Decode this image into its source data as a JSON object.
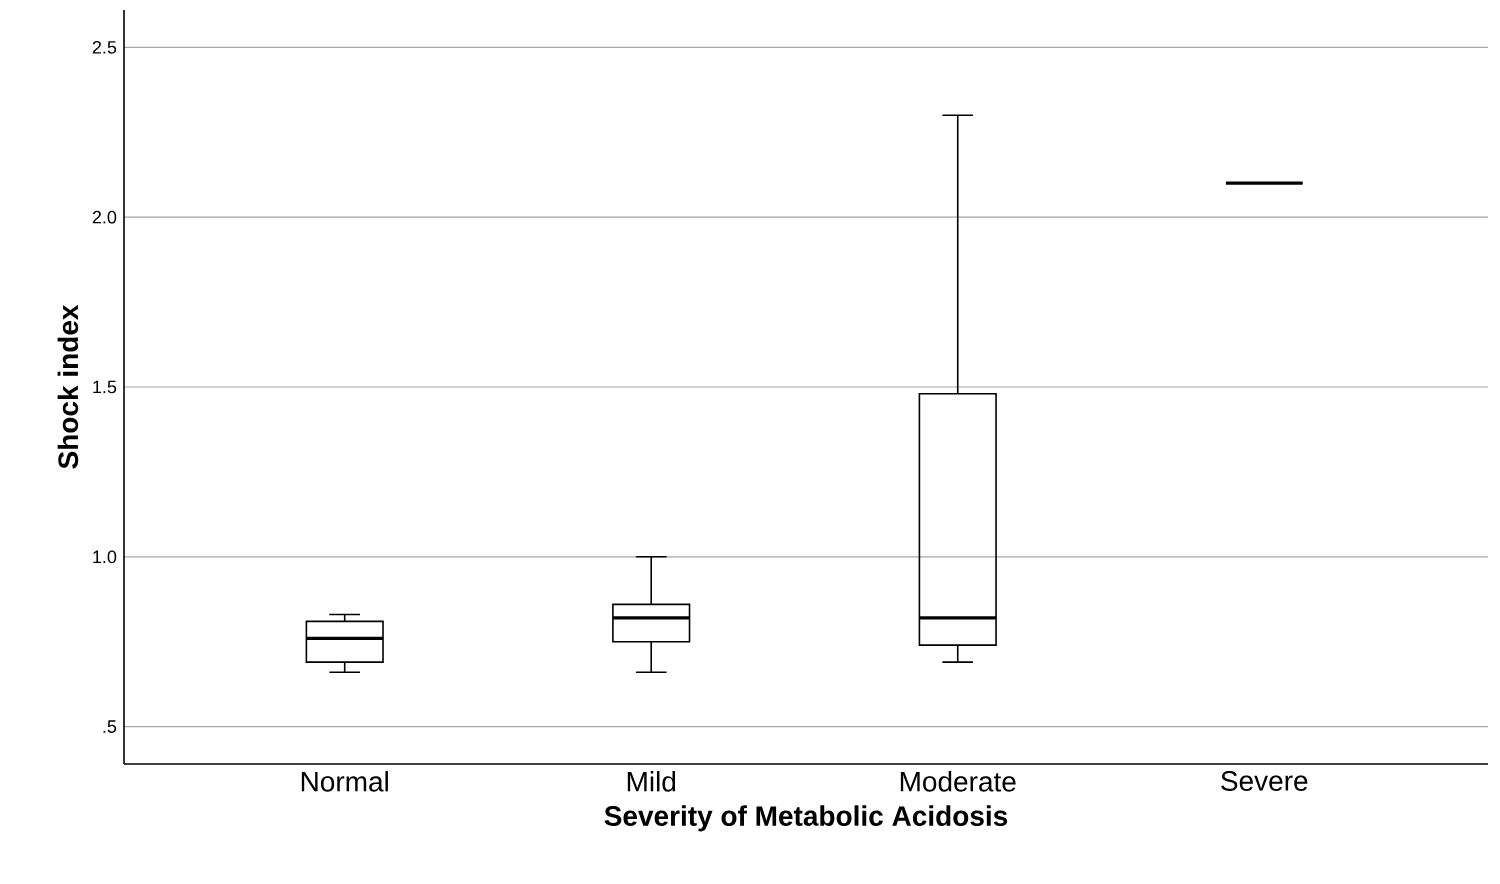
{
  "chart_data": {
    "type": "box",
    "xlabel": "Severity of Metabolic Acidosis",
    "ylabel": "Shock index",
    "categories": [
      "Normal",
      "Mild",
      "Moderate",
      "Severe"
    ],
    "boxes": [
      {
        "low": 0.66,
        "q1": 0.69,
        "median": 0.76,
        "q3": 0.81,
        "high": 0.83
      },
      {
        "low": 0.66,
        "q1": 0.75,
        "median": 0.82,
        "q3": 0.86,
        "high": 1.0
      },
      {
        "low": 0.69,
        "q1": 0.74,
        "median": 0.82,
        "q3": 1.48,
        "high": 2.3
      },
      {
        "low": 2.1,
        "q1": 2.1,
        "median": 2.1,
        "q3": 2.1,
        "high": 2.1
      }
    ],
    "ylim": [
      0.39,
      2.61
    ],
    "yticks": [
      {
        "value": 0.5,
        "label": ".5"
      },
      {
        "value": 1,
        "label": "1.0"
      },
      {
        "value": 1.5,
        "label": "1.5"
      },
      {
        "value": 2,
        "label": "2.0"
      },
      {
        "value": 2.5,
        "label": "2.5"
      }
    ],
    "grid": "y"
  }
}
